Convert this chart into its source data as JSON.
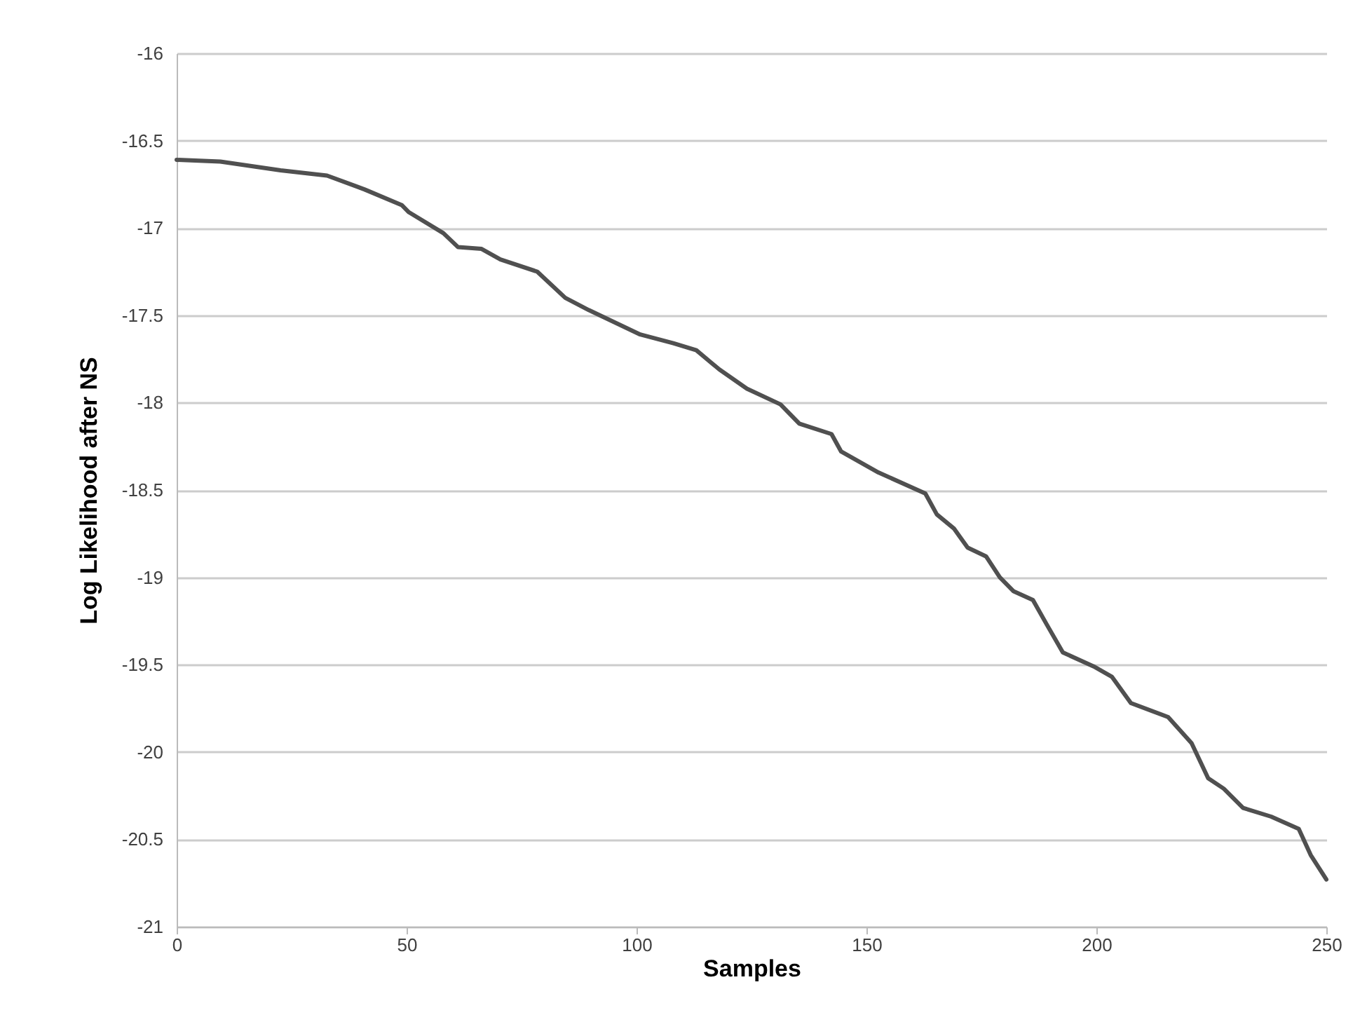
{
  "chart_data": {
    "type": "line",
    "xlabel": "Samples",
    "ylabel": "Log Likelihood after NS",
    "xlim": [
      0,
      250
    ],
    "xticks": [
      0,
      50,
      100,
      150,
      200,
      250
    ],
    "ylim": [
      -21,
      -16
    ],
    "yticks": [
      -21,
      -20.5,
      -20,
      -19.5,
      -19,
      -18.5,
      -18,
      -17.5,
      -17,
      -16.5,
      -16
    ],
    "grid": "y",
    "series": [
      {
        "color": "#505050",
        "x": [
          0,
          9.5,
          22.6,
          32.7,
          40.9,
          49,
          50.5,
          58,
          61.2,
          66.3,
          70.4,
          78.4,
          84.5,
          89.6,
          100.8,
          108,
          113,
          118,
          124,
          131.3,
          135.4,
          142.4,
          144.5,
          152.6,
          162.8,
          165.3,
          169,
          172,
          176,
          179,
          182,
          186.2,
          189.2,
          192.7,
          199.4,
          203.4,
          207.5,
          215.6,
          220.7,
          224.3,
          227.7,
          231.9,
          238,
          244,
          246.6,
          250
        ],
        "values": [
          -16.61,
          -16.62,
          -16.67,
          -16.7,
          -16.78,
          -16.87,
          -16.91,
          -17.03,
          -17.11,
          -17.12,
          -17.18,
          -17.25,
          -17.4,
          -17.47,
          -17.61,
          -17.66,
          -17.7,
          -17.81,
          -17.92,
          -18.01,
          -18.12,
          -18.18,
          -18.28,
          -18.4,
          -18.52,
          -18.64,
          -18.72,
          -18.83,
          -18.88,
          -19,
          -19.08,
          -19.13,
          -19.27,
          -19.43,
          -19.51,
          -19.57,
          -19.72,
          -19.8,
          -19.95,
          -20.15,
          -20.21,
          -20.32,
          -20.37,
          -20.44,
          -20.59,
          -20.73
        ]
      }
    ]
  }
}
